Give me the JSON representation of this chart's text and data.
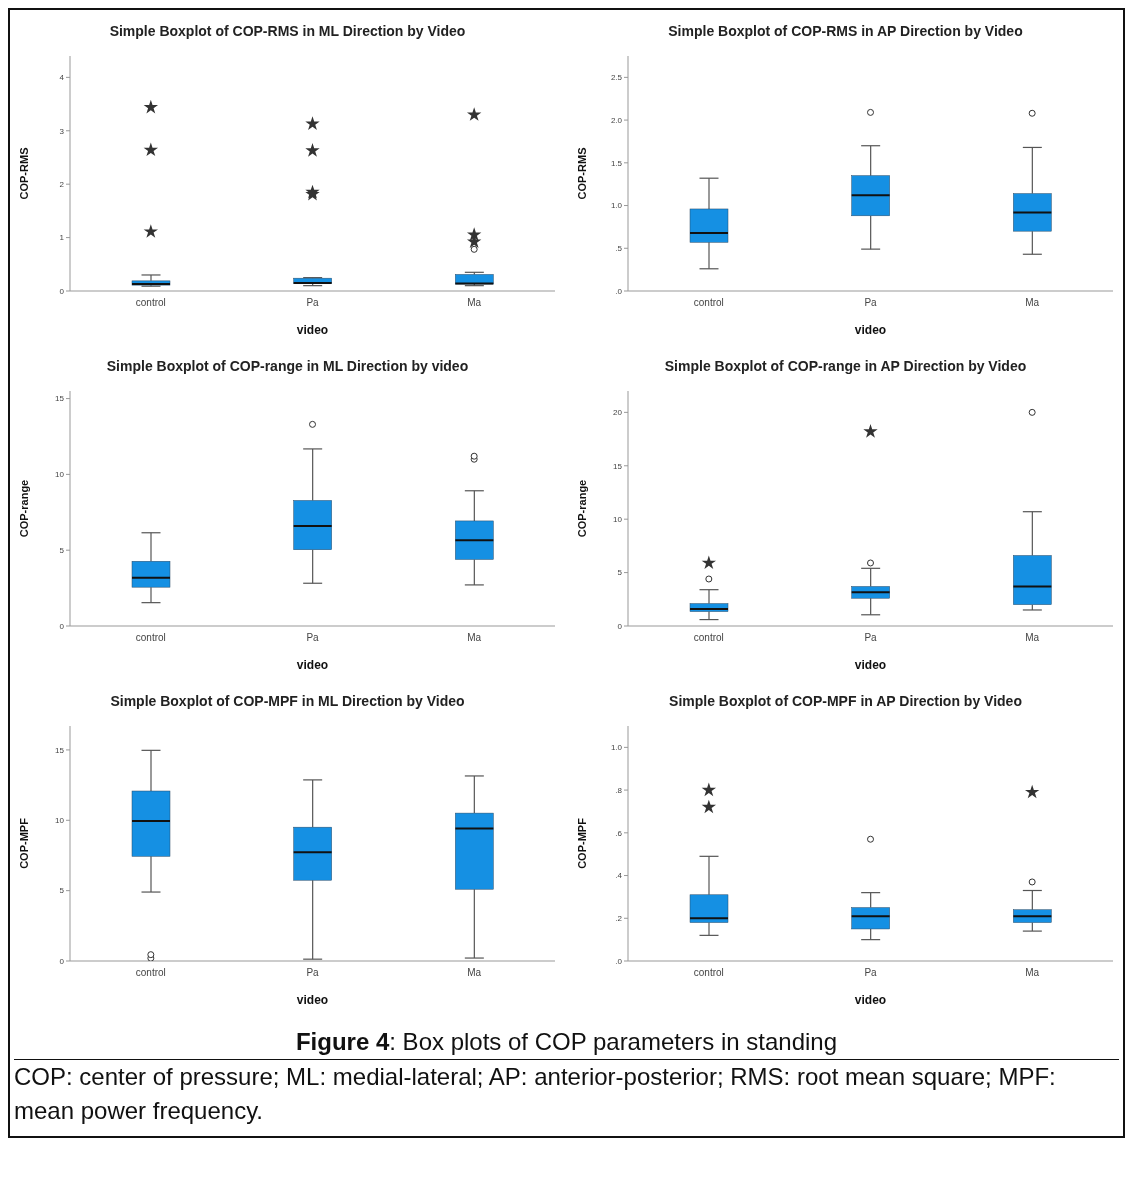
{
  "chart_data": [
    {
      "type": "box",
      "title": "Simple Boxplot of COP-RMS in ML Direction by Video",
      "xlabel": "video",
      "ylabel": "COP-RMS",
      "color": "#1590e3",
      "categories": [
        "control",
        "Pa",
        "Ma"
      ],
      "ylim": [
        0,
        4.4
      ],
      "yticks": [
        0,
        1,
        2,
        3,
        4
      ],
      "boxes": [
        {
          "low": 0.09,
          "q1": 0.11,
          "median": 0.13,
          "q3": 0.19,
          "high": 0.3
        },
        {
          "low": 0.1,
          "q1": 0.14,
          "median": 0.15,
          "q3": 0.24,
          "high": 0.25
        },
        {
          "low": 0.1,
          "q1": 0.13,
          "median": 0.14,
          "q3": 0.31,
          "high": 0.35,
          "outliers": [
            0.78
          ]
        }
      ],
      "series": [
        {
          "type": "scatter",
          "marker": "star",
          "color": "#333333",
          "x": [
            "control",
            "control",
            "control",
            "Pa",
            "Pa",
            "Pa",
            "Pa",
            "Ma",
            "Ma",
            "Ma"
          ],
          "values": [
            3.44,
            2.64,
            1.11,
            3.13,
            2.63,
            1.85,
            1.81,
            3.3,
            1.05,
            0.92
          ]
        }
      ]
    },
    {
      "type": "box",
      "title": "Simple Boxplot of COP-RMS in AP Direction by Video",
      "xlabel": "video",
      "ylabel": "COP-RMS",
      "color": "#1590e3",
      "categories": [
        "control",
        "Pa",
        "Ma"
      ],
      "ylim": [
        0,
        2.75
      ],
      "yticks": [
        {
          "value": 0,
          "label": ".0"
        },
        {
          "value": 0.5,
          "label": ".5"
        },
        {
          "value": 1,
          "label": "1.0"
        },
        {
          "value": 1.5,
          "label": "1.5"
        },
        {
          "value": 2,
          "label": "2.0"
        },
        {
          "value": 2.5,
          "label": "2.5"
        }
      ],
      "boxes": [
        {
          "low": 0.26,
          "q1": 0.57,
          "median": 0.68,
          "q3": 0.96,
          "high": 1.32
        },
        {
          "low": 0.49,
          "q1": 0.88,
          "median": 1.12,
          "q3": 1.35,
          "high": 1.7,
          "outliers": [
            2.09
          ]
        },
        {
          "low": 0.43,
          "q1": 0.7,
          "median": 0.92,
          "q3": 1.14,
          "high": 1.68,
          "outliers": [
            2.08
          ]
        }
      ]
    },
    {
      "type": "box",
      "title": "Simple Boxplot of COP-range in ML Direction by video",
      "xlabel": "video",
      "ylabel": "COP-range",
      "color": "#1590e3",
      "categories": [
        "control",
        "Pa",
        "Ma"
      ],
      "ylim": [
        0,
        15.5
      ],
      "yticks": [
        0,
        5,
        10,
        15
      ],
      "boxes": [
        {
          "low": 1.54,
          "q1": 2.56,
          "median": 3.18,
          "q3": 4.27,
          "high": 6.15
        },
        {
          "low": 2.82,
          "q1": 5.03,
          "median": 6.6,
          "q3": 8.28,
          "high": 11.68,
          "outliers": [
            13.3
          ]
        },
        {
          "low": 2.71,
          "q1": 4.39,
          "median": 5.65,
          "q3": 6.93,
          "high": 8.92,
          "outliers": [
            11.0,
            11.2
          ]
        }
      ]
    },
    {
      "type": "box",
      "title": "Simple Boxplot of COP-range in AP Direction by Video",
      "xlabel": "video",
      "ylabel": "COP-range",
      "color": "#1590e3",
      "categories": [
        "control",
        "Pa",
        "Ma"
      ],
      "ylim": [
        0,
        22
      ],
      "yticks": [
        0,
        5,
        10,
        15,
        20
      ],
      "boxes": [
        {
          "low": 0.6,
          "q1": 1.35,
          "median": 1.6,
          "q3": 2.1,
          "high": 3.4,
          "outliers": [
            4.4
          ]
        },
        {
          "low": 1.05,
          "q1": 2.6,
          "median": 3.15,
          "q3": 3.7,
          "high": 5.4,
          "outliers": [
            5.9
          ]
        },
        {
          "low": 1.5,
          "q1": 2.0,
          "median": 3.7,
          "q3": 6.6,
          "high": 10.7,
          "outliers": [
            20.0
          ]
        }
      ],
      "series": [
        {
          "type": "scatter",
          "marker": "star",
          "color": "#333333",
          "x": [
            "control",
            "Pa"
          ],
          "values": [
            5.9,
            18.2
          ]
        }
      ]
    },
    {
      "type": "box",
      "title": "Simple Boxplot of COP-MPF in ML Direction by Video",
      "xlabel": "video",
      "ylabel": "COP-MPF",
      "color": "#1590e3",
      "categories": [
        "control",
        "Pa",
        "Ma"
      ],
      "ylim": [
        0,
        16.7
      ],
      "yticks": [
        0,
        5,
        10,
        15
      ],
      "boxes": [
        {
          "low": 4.9,
          "q1": 7.44,
          "median": 9.95,
          "q3": 12.08,
          "high": 14.97,
          "outliers": [
            0.2,
            0.45
          ]
        },
        {
          "low": 0.13,
          "q1": 5.74,
          "median": 7.72,
          "q3": 9.51,
          "high": 12.87
        },
        {
          "low": 0.21,
          "q1": 5.1,
          "median": 9.41,
          "q3": 10.51,
          "high": 13.15
        }
      ]
    },
    {
      "type": "box",
      "title": "Simple Boxplot of COP-MPF in AP Direction by Video",
      "xlabel": "video",
      "ylabel": "COP-MPF",
      "color": "#1590e3",
      "categories": [
        "control",
        "Pa",
        "Ma"
      ],
      "ylim": [
        0,
        1.1
      ],
      "yticks": [
        {
          "value": 0,
          "label": ".0"
        },
        {
          "value": 0.2,
          "label": ".2"
        },
        {
          "value": 0.4,
          "label": ".4"
        },
        {
          "value": 0.6,
          "label": ".6"
        },
        {
          "value": 0.8,
          "label": ".8"
        },
        {
          "value": 1,
          "label": "1.0"
        }
      ],
      "boxes": [
        {
          "low": 0.12,
          "q1": 0.18,
          "median": 0.2,
          "q3": 0.31,
          "high": 0.49
        },
        {
          "low": 0.1,
          "q1": 0.15,
          "median": 0.21,
          "q3": 0.25,
          "high": 0.32,
          "outliers": [
            0.57
          ]
        },
        {
          "low": 0.14,
          "q1": 0.18,
          "median": 0.21,
          "q3": 0.24,
          "high": 0.33,
          "outliers": [
            0.37
          ]
        }
      ],
      "series": [
        {
          "type": "scatter",
          "marker": "star",
          "color": "#333333",
          "x": [
            "control",
            "control",
            "Ma"
          ],
          "values": [
            0.8,
            0.72,
            0.79
          ]
        }
      ],
      "annotations": [
        "Figure 4: Box plots of COP parameters in standing",
        "COP: center of pressure; ML: medial-lateral; AP: anterior-posterior; RMS: root mean square; MPF: mean power frequency."
      ]
    }
  ]
}
